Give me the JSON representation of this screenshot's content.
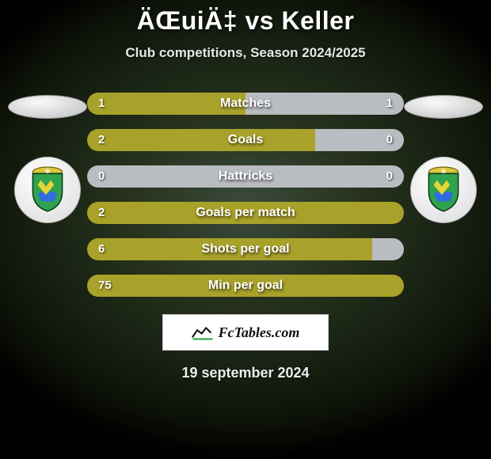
{
  "title": "ÄŒuiÄ‡ vs Keller",
  "subtitle": "Club competitions, Season 2024/2025",
  "date": "19 september 2024",
  "brand": "FcTables.com",
  "colors": {
    "left": "#a9a22a",
    "right": "#b9bcc0",
    "track_empty": "#b9bcc0"
  },
  "left_icon": "player-avatar",
  "right_icon": "player-avatar",
  "left_club": "istra-crest",
  "right_club": "istra-crest",
  "rows": [
    {
      "metric": "Matches",
      "left_val": "1",
      "right_val": "1",
      "left_pct": 50,
      "right_pct": 50
    },
    {
      "metric": "Goals",
      "left_val": "2",
      "right_val": "0",
      "left_pct": 72,
      "right_pct": 0
    },
    {
      "metric": "Hattricks",
      "left_val": "0",
      "right_val": "0",
      "left_pct": 0,
      "right_pct": 0
    },
    {
      "metric": "Goals per match",
      "left_val": "2",
      "right_val": "",
      "left_pct": 100,
      "right_pct": 0
    },
    {
      "metric": "Shots per goal",
      "left_val": "6",
      "right_val": "",
      "left_pct": 90,
      "right_pct": 0
    },
    {
      "metric": "Min per goal",
      "left_val": "75",
      "right_val": "",
      "left_pct": 100,
      "right_pct": 0
    }
  ]
}
